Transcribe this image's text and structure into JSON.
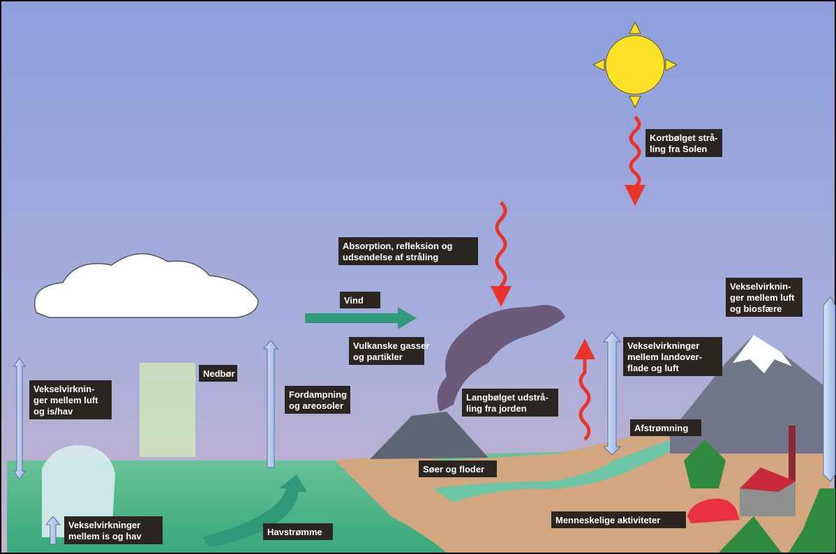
{
  "labels": [
    {
      "lines": [
        "Kortbølget strå-",
        "ling fra Solen"
      ]
    },
    {
      "lines": [
        "Absorption, refleksion og",
        "udsendelse af stråling"
      ]
    },
    {
      "lines": [
        "Vind"
      ]
    },
    {
      "lines": [
        "Vulkanske gasser",
        "og partikler"
      ]
    },
    {
      "lines": [
        "Nedbør"
      ]
    },
    {
      "lines": [
        "Vekselvirkninger",
        "mellem landover-",
        "flade og luft"
      ]
    },
    {
      "lines": [
        "Vekselvirknin-",
        "ger mellem luft",
        "og biosfære"
      ]
    },
    {
      "lines": [
        "Vekselvirknin-",
        "ger mellem luft",
        "og is/hav"
      ]
    },
    {
      "lines": [
        "Fordampning",
        "og areosoler"
      ]
    },
    {
      "lines": [
        "Langbølget udstrå-",
        "ling fra jorden"
      ]
    },
    {
      "lines": [
        "Afstrømning"
      ]
    },
    {
      "lines": [
        "Søer og floder"
      ]
    },
    {
      "lines": [
        "Vekselvirkninger",
        "mellem is og hav"
      ]
    },
    {
      "lines": [
        "Havstrømme"
      ]
    },
    {
      "lines": [
        "Menneskelige aktiviteter"
      ]
    }
  ]
}
